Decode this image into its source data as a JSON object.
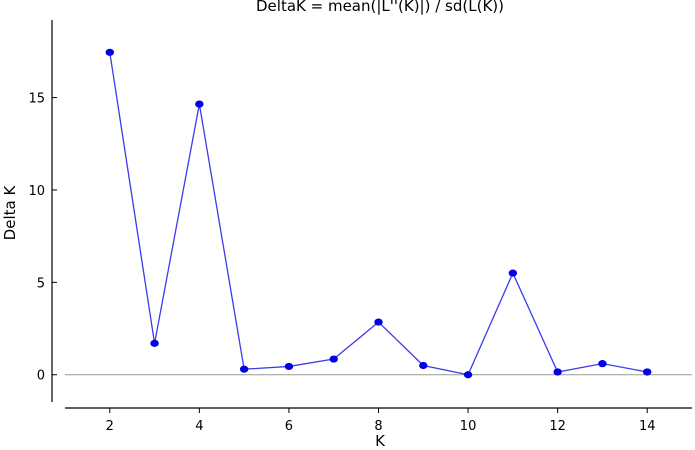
{
  "chart_data": {
    "type": "line",
    "title": "DeltaK = mean(|L''(K)|) / sd(L(K))",
    "xlabel": "K",
    "ylabel": "Delta K",
    "xlim": [
      1,
      15
    ],
    "ylim": [
      -1.8,
      19.2
    ],
    "xticks": [
      2,
      4,
      6,
      8,
      10,
      12,
      14
    ],
    "yticks": [
      0,
      5,
      10,
      15
    ],
    "zero_line": true,
    "grid": false,
    "legend": "none",
    "series": [
      {
        "x": [
          2,
          3,
          4,
          5,
          6,
          7,
          8,
          9,
          10,
          11,
          12,
          13,
          14
        ],
        "y": [
          17.45,
          1.7,
          14.65,
          0.3,
          0.45,
          0.85,
          2.85,
          0.5,
          0.0,
          5.5,
          0.15,
          0.6,
          0.15
        ]
      }
    ],
    "colors": {
      "line": "#3b3bf0",
      "marker": "#0000e6",
      "axis": "#000000",
      "zero_line": "#999999"
    }
  }
}
